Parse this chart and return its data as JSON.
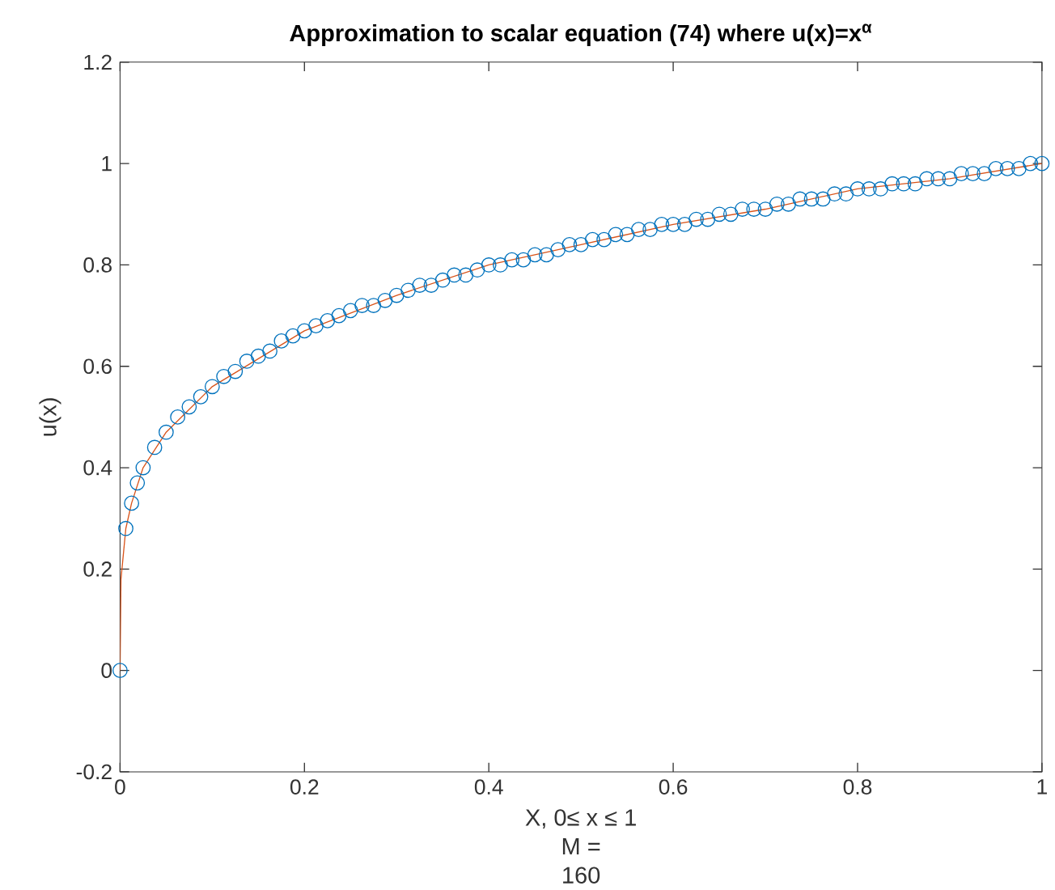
{
  "chart_data": {
    "type": "line",
    "title": "Approximation to scalar equation (74) where u(x)=x$^{α}$",
    "xlabel": "X, 0≤ x ≤ 1",
    "ylabel": "u(x)",
    "annotations": [
      "M =",
      "160"
    ],
    "xlim": [
      0,
      1
    ],
    "ylim": [
      -0.2,
      1.2
    ],
    "xticks": [
      0,
      0.2,
      0.4,
      0.6,
      0.8,
      1
    ],
    "yticks": [
      -0.2,
      0,
      0.2,
      0.4,
      0.6,
      0.8,
      1,
      1.2
    ],
    "grid": false,
    "series": [
      {
        "type": "scatter",
        "marker": "circle",
        "color": "#0072bd",
        "x": [
          0,
          0.00625,
          0.0125,
          0.01875,
          0.025,
          0.0375,
          0.05,
          0.0625,
          0.075,
          0.0875,
          0.1,
          0.1125,
          0.125,
          0.1375,
          0.15,
          0.1625,
          0.175,
          0.1875,
          0.2,
          0.2125,
          0.225,
          0.2375,
          0.25,
          0.2625,
          0.275,
          0.2875,
          0.3,
          0.3125,
          0.325,
          0.3375,
          0.35,
          0.3625,
          0.375,
          0.3875,
          0.4,
          0.4125,
          0.425,
          0.4375,
          0.45,
          0.4625,
          0.475,
          0.4875,
          0.5,
          0.5125,
          0.525,
          0.5375,
          0.55,
          0.5625,
          0.575,
          0.5875,
          0.6,
          0.6125,
          0.625,
          0.6375,
          0.65,
          0.6625,
          0.675,
          0.6875,
          0.7,
          0.7125,
          0.725,
          0.7375,
          0.75,
          0.7625,
          0.775,
          0.7875,
          0.8,
          0.8125,
          0.825,
          0.8375,
          0.85,
          0.8625,
          0.875,
          0.8875,
          0.9,
          0.9125,
          0.925,
          0.9375,
          0.95,
          0.9625,
          0.975,
          0.9875,
          1
        ],
        "values": [
          0,
          0.28,
          0.33,
          0.37,
          0.4,
          0.44,
          0.47,
          0.5,
          0.52,
          0.54,
          0.56,
          0.58,
          0.59,
          0.61,
          0.62,
          0.63,
          0.65,
          0.66,
          0.67,
          0.68,
          0.69,
          0.7,
          0.71,
          0.72,
          0.72,
          0.73,
          0.74,
          0.75,
          0.76,
          0.76,
          0.77,
          0.78,
          0.78,
          0.79,
          0.8,
          0.8,
          0.81,
          0.81,
          0.82,
          0.82,
          0.83,
          0.84,
          0.84,
          0.85,
          0.85,
          0.86,
          0.86,
          0.87,
          0.87,
          0.88,
          0.88,
          0.88,
          0.89,
          0.89,
          0.9,
          0.9,
          0.91,
          0.91,
          0.91,
          0.92,
          0.92,
          0.93,
          0.93,
          0.93,
          0.94,
          0.94,
          0.95,
          0.95,
          0.95,
          0.96,
          0.96,
          0.96,
          0.97,
          0.97,
          0.97,
          0.98,
          0.98,
          0.98,
          0.99,
          0.99,
          0.99,
          1.0,
          1.0
        ]
      },
      {
        "marker": "none",
        "line_style": "solid",
        "color": "#d95319",
        "x": [
          0,
          0.001,
          0.00625,
          0.0125,
          0.025,
          0.05,
          0.1,
          0.2,
          0.3,
          0.4,
          0.5,
          0.6,
          0.7,
          0.8,
          0.9,
          1
        ],
        "values": [
          0,
          0.18,
          0.28,
          0.33,
          0.4,
          0.47,
          0.56,
          0.67,
          0.74,
          0.8,
          0.84,
          0.88,
          0.91,
          0.95,
          0.97,
          1.0
        ]
      }
    ]
  }
}
